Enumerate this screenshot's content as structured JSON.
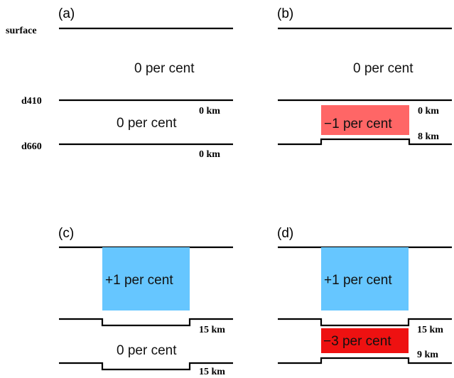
{
  "boundaries": {
    "surface": "surface",
    "d410": "d410",
    "d660": "d660"
  },
  "colors": {
    "anomaly_minus1": "#ff6666",
    "anomaly_plus1": "#66c6ff",
    "anomaly_minus3": "#ee1111"
  },
  "panels": {
    "a": {
      "label": "(a)",
      "upper_text": "0 per cent",
      "lower_text": "0 per cent",
      "d410_deflection": "0 km",
      "d660_deflection": "0 km"
    },
    "b": {
      "label": "(b)",
      "upper_text": "0 per cent",
      "lower_text": "−1 per cent",
      "d410_deflection": "0 km",
      "d660_deflection": "8 km"
    },
    "c": {
      "label": "(c)",
      "upper_text": "+1 per cent",
      "lower_text": "0 per cent",
      "d410_deflection": "15 km",
      "d660_deflection": "15 km"
    },
    "d": {
      "label": "(d)",
      "upper_text": "+1 per cent",
      "lower_text": "−3 per cent",
      "d410_deflection": "15 km",
      "d660_deflection": "9 km"
    }
  }
}
